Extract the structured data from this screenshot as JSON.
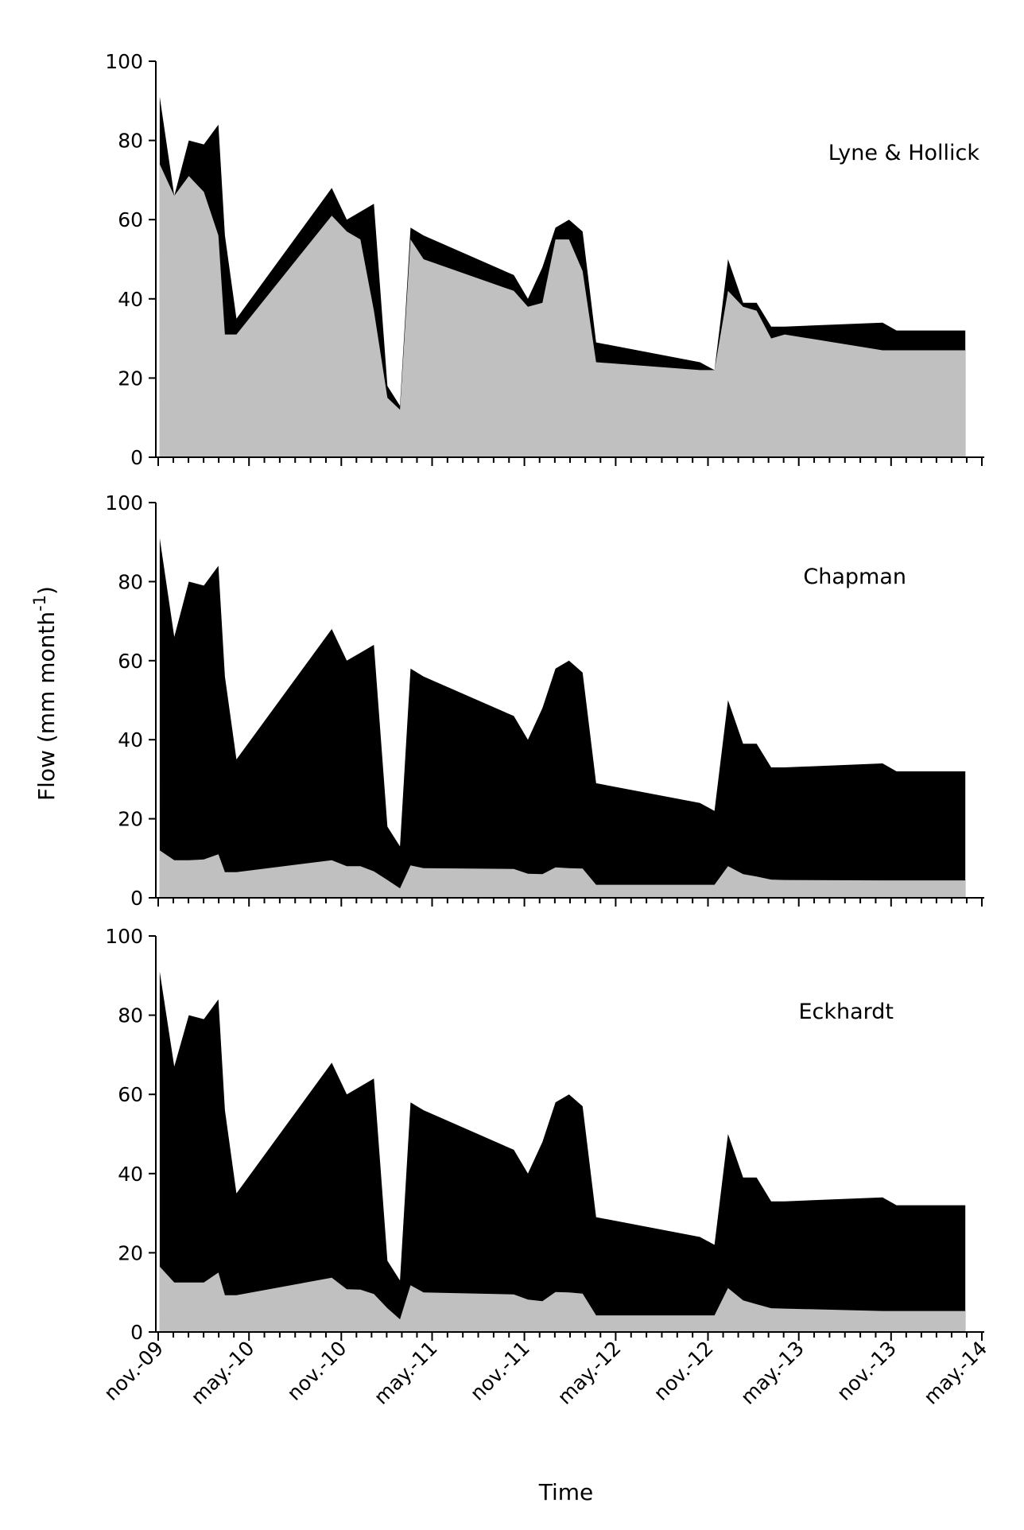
{
  "chart_data": {
    "type": "area",
    "ylabel": "Flow (mm month",
    "ylabel_sup": "-1",
    "ylabel_close": ")",
    "xlabel": "Time",
    "ylim": [
      0,
      100
    ],
    "yticks": [
      0,
      20,
      40,
      60,
      80,
      100
    ],
    "x_tick_labels": [
      "nov.-09",
      "may.-10",
      "nov.-10",
      "may.-11",
      "nov.-11",
      "may.-12",
      "nov.-12",
      "may.-13",
      "nov.-13",
      "may.-14"
    ],
    "x_tick_dates": [
      "2009-11-01",
      "2010-05-01",
      "2010-11-01",
      "2011-05-01",
      "2011-11-01",
      "2012-05-01",
      "2012-11-01",
      "2013-05-01",
      "2013-11-01",
      "2014-05-01"
    ],
    "x_range": [
      "2009-11-01",
      "2014-05-01"
    ],
    "series_colors": {
      "total": "#000000",
      "baseflow": "#c0c0c0"
    },
    "x": [
      "2009-11-04",
      "2009-12-03",
      "2010-01-01",
      "2010-01-31",
      "2010-03-01",
      "2010-03-14",
      "2010-04-06",
      "2010-10-13",
      "2010-11-12",
      "2010-12-09",
      "2011-01-05",
      "2011-02-01",
      "2011-02-26",
      "2011-03-19",
      "2011-04-14",
      "2011-10-11",
      "2011-11-08",
      "2011-12-07",
      "2012-01-02",
      "2012-01-29",
      "2012-02-25",
      "2012-03-23",
      "2012-10-16",
      "2012-11-14",
      "2012-12-11",
      "2013-01-10",
      "2013-02-06",
      "2013-03-07",
      "2013-04-03",
      "2013-10-15",
      "2013-11-12",
      "2013-12-10",
      "2014-01-06",
      "2014-02-03",
      "2014-03-02",
      "2014-03-29"
    ],
    "panels": [
      {
        "title": "Lyne & Hollick",
        "total": [
          91,
          66,
          80,
          79,
          84,
          56,
          35,
          68,
          60,
          62,
          64,
          18,
          13,
          58,
          56,
          46,
          40,
          48,
          58,
          60,
          57,
          29,
          24,
          22,
          50,
          39,
          39,
          33,
          33,
          34,
          32,
          32,
          32,
          32,
          32,
          32
        ],
        "baseflow": [
          74,
          66,
          71,
          67,
          56,
          31,
          31,
          61,
          57,
          55,
          37,
          15,
          12,
          55,
          50,
          42,
          38,
          39,
          55,
          55,
          47,
          24,
          22,
          22,
          42,
          38,
          37,
          30,
          31,
          27,
          27,
          27,
          27,
          27,
          27,
          27
        ]
      },
      {
        "title": "Chapman",
        "total": [
          91,
          66,
          80,
          79,
          84,
          56,
          35,
          68,
          60,
          62,
          64,
          18,
          13,
          58,
          56,
          46,
          40,
          48,
          58,
          60,
          57,
          29,
          24,
          22,
          50,
          39,
          39,
          33,
          33,
          34,
          32,
          32,
          32,
          32,
          32,
          32
        ],
        "baseflow": [
          12,
          9.5,
          9.5,
          9.7,
          11,
          6.5,
          6.5,
          9.5,
          8.0,
          8.0,
          6.7,
          4.5,
          2.4,
          8.2,
          7.5,
          7.3,
          6.1,
          6.0,
          7.7,
          7.5,
          7.4,
          3.3,
          3.3,
          3.3,
          8.0,
          6.0,
          5.4,
          4.6,
          4.5,
          4.4,
          4.4,
          4.4,
          4.4,
          4.4,
          4.4,
          4.4
        ]
      },
      {
        "title": "Eckhardt",
        "total": [
          91,
          67,
          80,
          79,
          84,
          56,
          35,
          68,
          60,
          62,
          64,
          18,
          13,
          58,
          56,
          46,
          40,
          48,
          58,
          60,
          57,
          29,
          24,
          22,
          50,
          39,
          39,
          33,
          33,
          34,
          32,
          32,
          32,
          32,
          32,
          32
        ],
        "baseflow": [
          16.5,
          12.5,
          12.5,
          12.5,
          15,
          9.3,
          9.3,
          13.7,
          10.8,
          10.7,
          9.6,
          6.0,
          3.2,
          11.8,
          10.0,
          9.5,
          8.2,
          7.8,
          10.1,
          10.0,
          9.7,
          4.2,
          4.2,
          4.2,
          11.1,
          8.0,
          7.0,
          6.0,
          5.9,
          5.3,
          5.3,
          5.3,
          5.3,
          5.3,
          5.3,
          5.3
        ]
      }
    ]
  }
}
